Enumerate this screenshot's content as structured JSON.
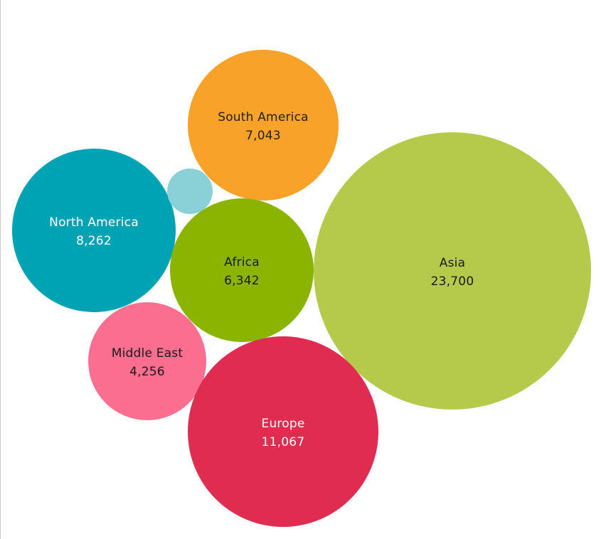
{
  "chart_data": {
    "type": "bubble",
    "title": "",
    "series": [
      {
        "name": "South America",
        "value": 7043,
        "display": "7,043",
        "color": "#F8A22A",
        "text_color": "#222222"
      },
      {
        "name": "North America",
        "value": 8262,
        "display": "8,262",
        "color": "#00A3B4",
        "text_color": "#ffffff"
      },
      {
        "name": "Africa",
        "value": 6342,
        "display": "6,342",
        "color": "#8AB400",
        "text_color": "#1a1a1a"
      },
      {
        "name": "Asia",
        "value": 23700,
        "display": "23,700",
        "color": "#B5CA4B",
        "text_color": "#1a1a1a"
      },
      {
        "name": "Middle East",
        "value": 4256,
        "display": "4,256",
        "color": "#FA6E8F",
        "text_color": "#1a1a1a"
      },
      {
        "name": "Europe",
        "value": 11067,
        "display": "11,067",
        "color": "#E02C50",
        "text_color": "#ffffff"
      },
      {
        "name": "",
        "value": null,
        "display": "",
        "color": "#8AD1D7",
        "text_color": "#1a1a1a"
      }
    ]
  }
}
